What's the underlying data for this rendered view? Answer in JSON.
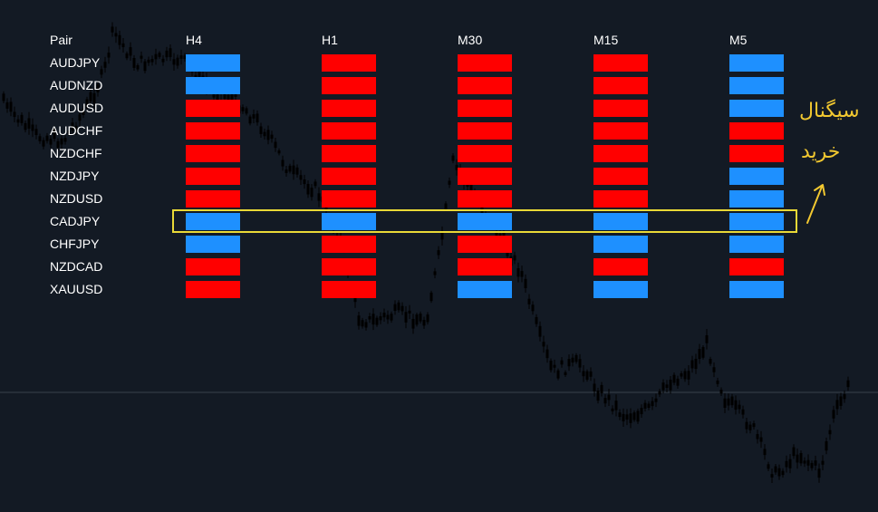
{
  "header": {
    "pair_label": "Pair",
    "timeframes": [
      "H4",
      "H1",
      "M30",
      "M15",
      "M5"
    ]
  },
  "pairs": [
    "AUDJPY",
    "AUDNZD",
    "AUDUSD",
    "AUDCHF",
    "NZDCHF",
    "NZDJPY",
    "NZDUSD",
    "CADJPY",
    "CHFJPY",
    "NZDCAD",
    "XAUUSD"
  ],
  "signals": [
    [
      "buy",
      "sell",
      "sell",
      "sell",
      "buy"
    ],
    [
      "buy",
      "sell",
      "sell",
      "sell",
      "buy"
    ],
    [
      "sell",
      "sell",
      "sell",
      "sell",
      "buy"
    ],
    [
      "sell",
      "sell",
      "sell",
      "sell",
      "sell"
    ],
    [
      "sell",
      "sell",
      "sell",
      "sell",
      "sell"
    ],
    [
      "sell",
      "sell",
      "sell",
      "sell",
      "buy"
    ],
    [
      "sell",
      "sell",
      "sell",
      "sell",
      "buy"
    ],
    [
      "buy",
      "buy",
      "buy",
      "buy",
      "buy"
    ],
    [
      "buy",
      "sell",
      "sell",
      "buy",
      "buy"
    ],
    [
      "sell",
      "sell",
      "sell",
      "sell",
      "sell"
    ],
    [
      "sell",
      "sell",
      "buy",
      "buy",
      "buy"
    ]
  ],
  "colors": {
    "buy": "#1e90ff",
    "sell": "#ff0000",
    "highlight": "#e9d937",
    "annotation": "#f2c830"
  },
  "annotation": {
    "line1": "سیگنال",
    "line2": "خرید",
    "icon": "arrow-up-right-icon"
  },
  "highlighted_pair": "CADJPY"
}
